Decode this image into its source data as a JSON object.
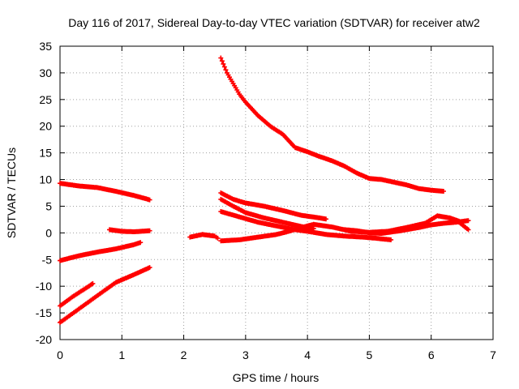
{
  "chart_data": {
    "type": "scatter",
    "title": "Day 116 of 2017, Sidereal Day-to-day VTEC variation (SDTVAR) for receiver atw2",
    "xlabel": "GPS time / hours",
    "ylabel": "SDTVAR / TECUs",
    "xlim": [
      0,
      7
    ],
    "ylim": [
      -20,
      35
    ],
    "x_ticks": [
      0,
      1,
      2,
      3,
      4,
      5,
      6,
      7
    ],
    "x_tick_labels": [
      "0",
      "1",
      "2",
      "3",
      "4",
      "5",
      "6",
      "7"
    ],
    "y_ticks": [
      -20,
      -15,
      -10,
      -5,
      0,
      5,
      10,
      15,
      20,
      25,
      30,
      35
    ],
    "y_tick_labels": [
      "-20",
      "-15",
      "-10",
      "-5",
      "0",
      "5",
      "10",
      "15",
      "20",
      "25",
      "30",
      "35"
    ],
    "grid": true,
    "marker": "plus",
    "color": "#ff0000",
    "tracks": [
      {
        "x": [
          0.0,
          0.3,
          0.6,
          0.9,
          1.2,
          1.45
        ],
        "y": [
          9.3,
          8.8,
          8.5,
          7.8,
          7.0,
          6.2
        ]
      },
      {
        "x": [
          0.0,
          0.3,
          0.6,
          0.9,
          1.2,
          1.3
        ],
        "y": [
          -5.2,
          -4.3,
          -3.6,
          -3.0,
          -2.2,
          -1.8
        ]
      },
      {
        "x": [
          0.0,
          0.2,
          0.4,
          0.53
        ],
        "y": [
          -13.7,
          -12.0,
          -10.5,
          -9.5
        ]
      },
      {
        "x": [
          0.0,
          0.3,
          0.6,
          0.9,
          1.2,
          1.45
        ],
        "y": [
          -16.8,
          -14.3,
          -11.8,
          -9.3,
          -7.8,
          -6.5
        ]
      },
      {
        "x": [
          0.8,
          1.0,
          1.2,
          1.45
        ],
        "y": [
          0.6,
          0.3,
          0.2,
          0.4
        ]
      },
      {
        "x": [
          2.1,
          2.3,
          2.5,
          2.55
        ],
        "y": [
          -0.8,
          -0.3,
          -0.6,
          -1.0
        ]
      },
      {
        "x": [
          2.6,
          2.7,
          2.8,
          2.9,
          3.0,
          3.2,
          3.4,
          3.6,
          3.8,
          4.0,
          4.2,
          4.4,
          4.6,
          4.8,
          5.0,
          5.2,
          5.4,
          5.6,
          5.8,
          6.0,
          6.2
        ],
        "y": [
          32.8,
          30.0,
          28.0,
          26.0,
          24.5,
          22.0,
          20.0,
          18.5,
          16.0,
          15.2,
          14.3,
          13.5,
          12.5,
          11.2,
          10.2,
          10.0,
          9.5,
          9.0,
          8.3,
          8.0,
          7.8
        ]
      },
      {
        "x": [
          2.6,
          2.8,
          3.0,
          3.3,
          3.6,
          3.9,
          4.2,
          4.3
        ],
        "y": [
          7.5,
          6.3,
          5.6,
          5.0,
          4.2,
          3.3,
          2.8,
          2.6
        ]
      },
      {
        "x": [
          2.6,
          2.8,
          3.0,
          3.3,
          3.6,
          3.9,
          4.1
        ],
        "y": [
          6.3,
          5.0,
          3.8,
          2.8,
          2.0,
          1.2,
          0.8
        ]
      },
      {
        "x": [
          2.6,
          2.9,
          3.2,
          3.5,
          3.8,
          4.0,
          4.3,
          4.6,
          4.9,
          5.1,
          5.35
        ],
        "y": [
          4.0,
          3.0,
          2.0,
          1.3,
          0.6,
          0.3,
          -0.3,
          -0.6,
          -0.8,
          -1.0,
          -1.3
        ]
      },
      {
        "x": [
          2.6,
          2.9,
          3.2,
          3.5,
          3.7,
          3.9,
          4.1,
          4.4,
          4.7,
          5.0,
          5.3,
          5.6,
          5.9,
          6.1,
          6.3,
          6.45
        ],
        "y": [
          -1.5,
          -1.3,
          -0.8,
          -0.3,
          0.3,
          1.0,
          1.6,
          1.1,
          0.3,
          0.1,
          0.3,
          1.0,
          1.8,
          3.2,
          2.8,
          2.2
        ]
      },
      {
        "x": [
          4.6,
          4.8,
          5.0,
          5.2,
          5.5,
          5.8,
          6.0,
          6.2,
          6.4,
          6.6
        ],
        "y": [
          0.6,
          0.4,
          0.0,
          -0.1,
          0.4,
          1.0,
          1.5,
          1.8,
          2.0,
          2.3
        ]
      },
      {
        "x": [
          6.3,
          6.45,
          6.6
        ],
        "y": [
          2.8,
          2.0,
          0.6
        ]
      }
    ]
  }
}
